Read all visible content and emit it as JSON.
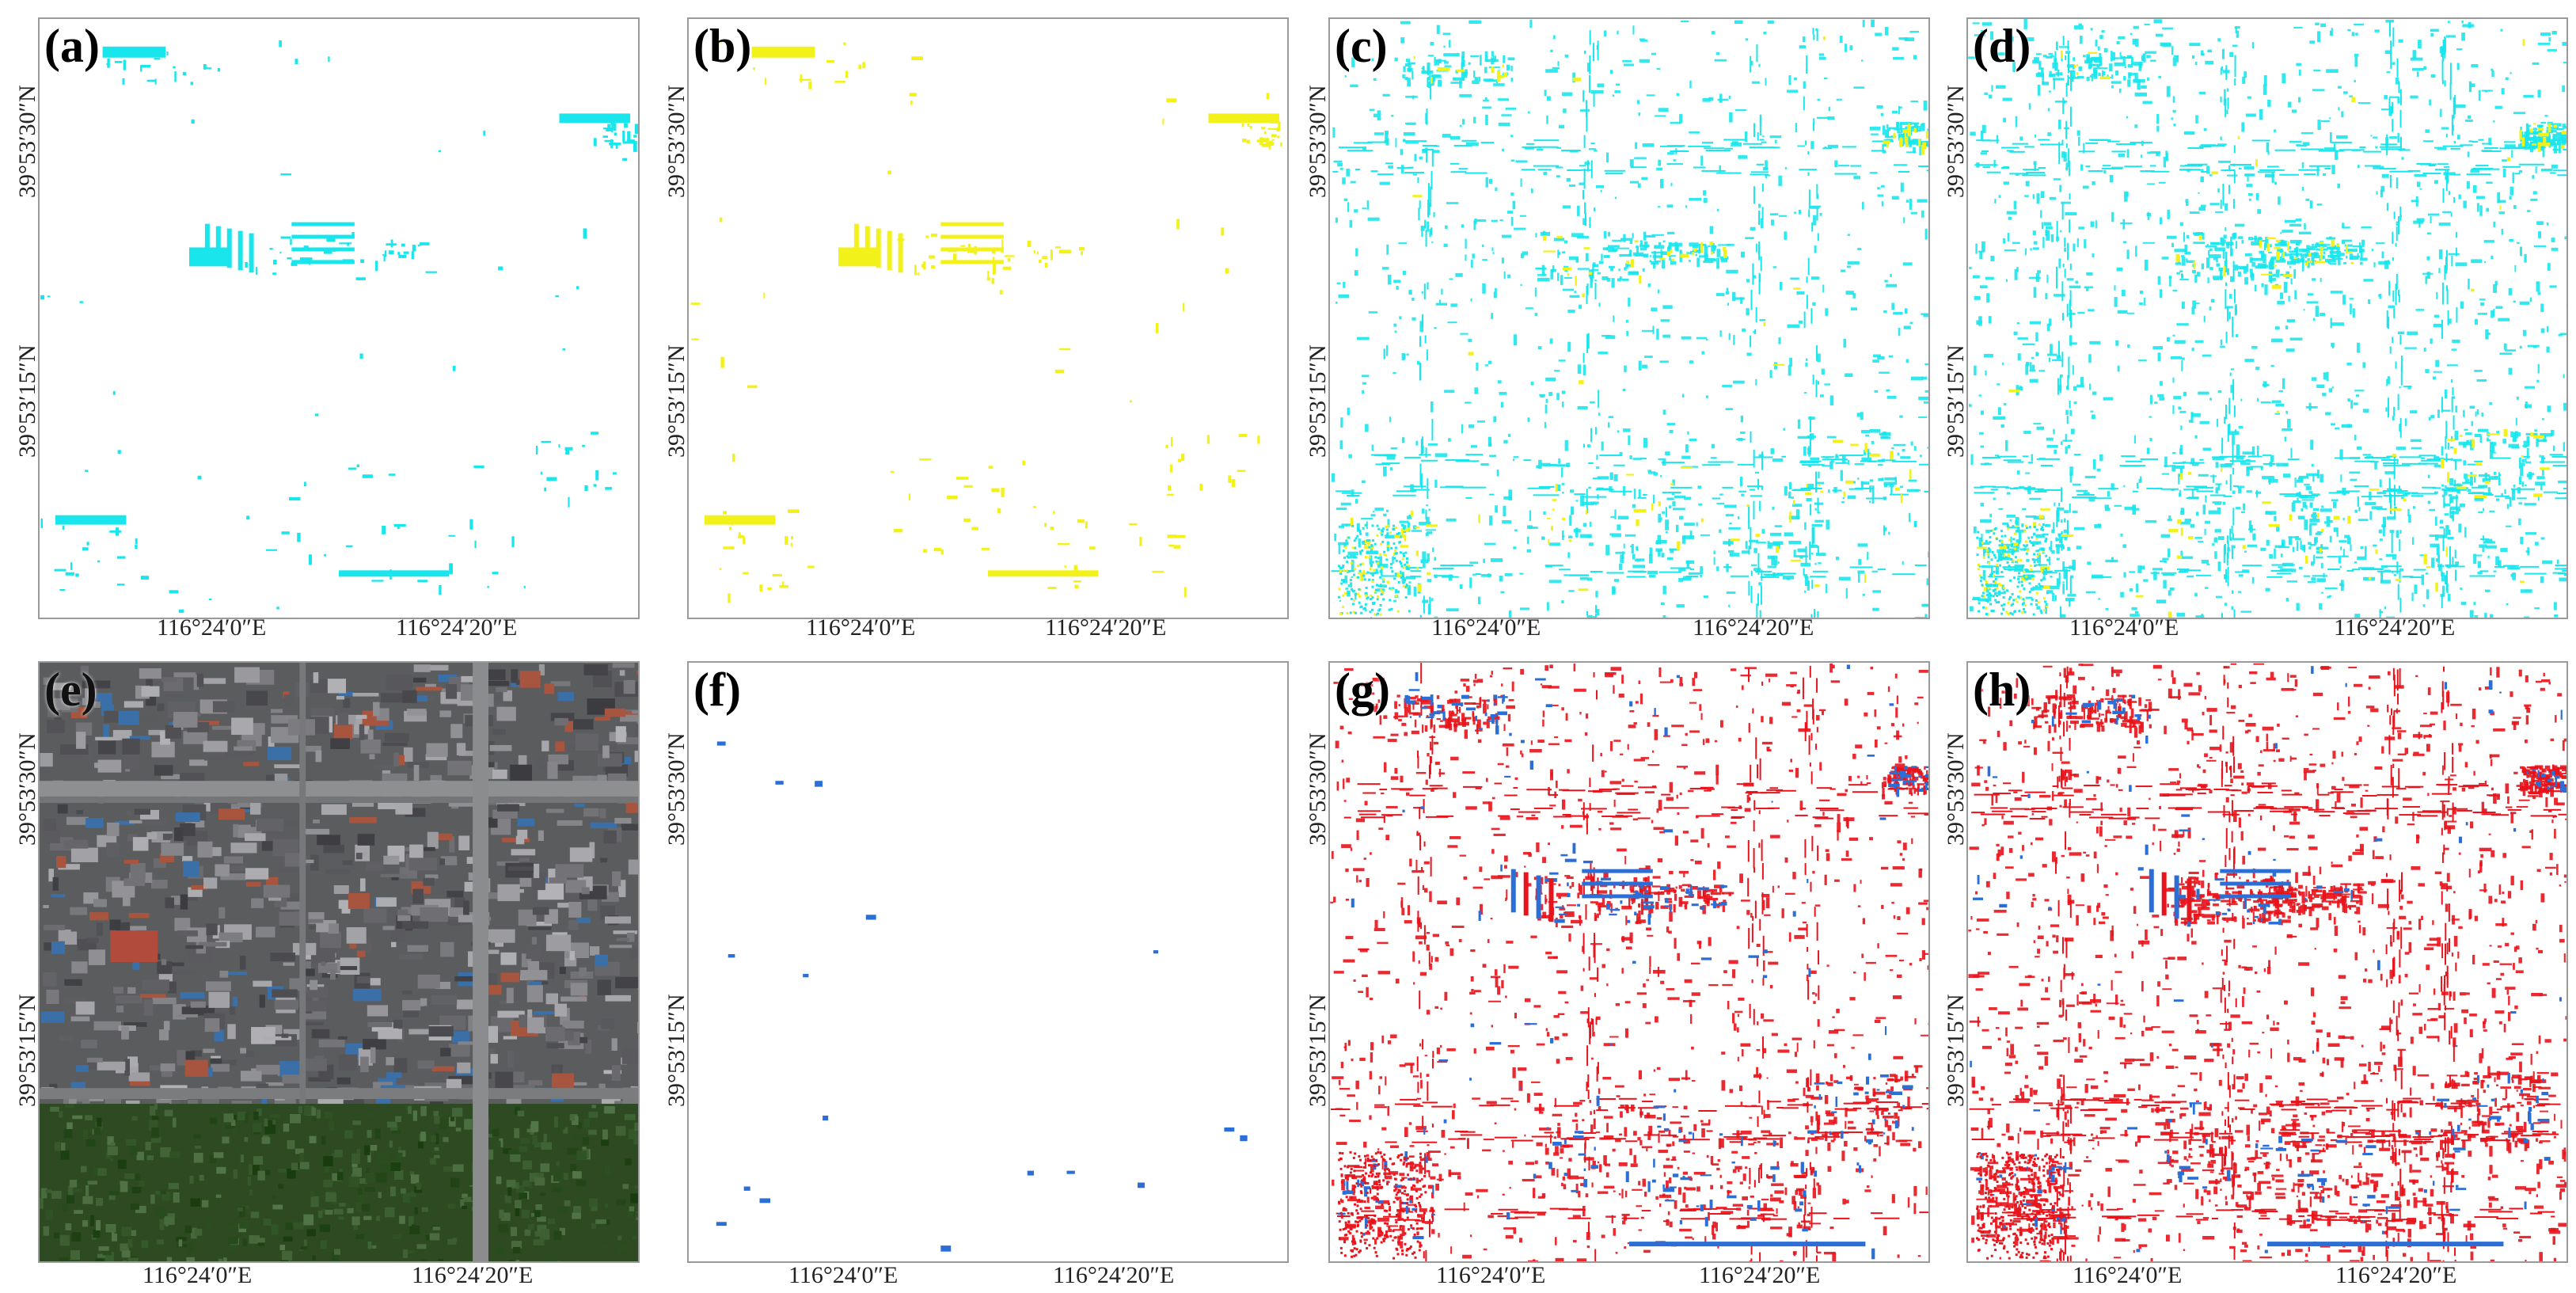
{
  "figure": {
    "panels": [
      {
        "id": "a",
        "label": "(a)",
        "style": "cyan-mask"
      },
      {
        "id": "b",
        "label": "(b)",
        "style": "yellow-mask"
      },
      {
        "id": "c",
        "label": "(c)",
        "style": "cyan-dense"
      },
      {
        "id": "d",
        "label": "(d)",
        "style": "cyan-denser"
      },
      {
        "id": "e",
        "label": "(e)",
        "style": "satellite"
      },
      {
        "id": "f",
        "label": "(f)",
        "style": "blue-sparse"
      },
      {
        "id": "g",
        "label": "(g)",
        "style": "red-blue"
      },
      {
        "id": "h",
        "label": "(h)",
        "style": "red-blue-dense"
      }
    ],
    "coordinates": {
      "lat_top": "39°53′30″N",
      "lat_bottom": "39°53′15″N",
      "lon_left": "116°24′0″E",
      "lon_right": "116°24′20″E"
    },
    "colors": {
      "cyan": "#19e6ec",
      "yellow": "#f3f11a",
      "red": "#e8131b",
      "blue": "#2b6fd6",
      "satellite_dark": "#3a3a3a",
      "satellite_vegetation": "#2d4a22"
    }
  }
}
